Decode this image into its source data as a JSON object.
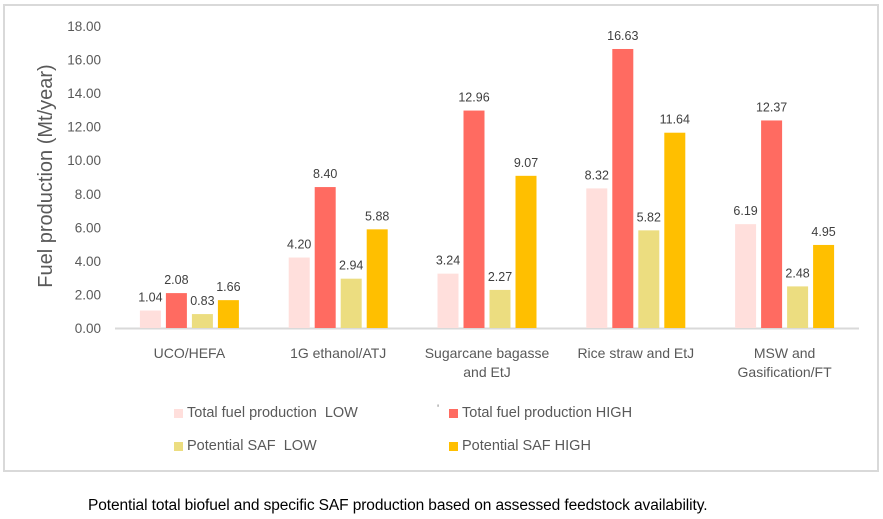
{
  "chart_data": {
    "type": "bar",
    "title": "",
    "xlabel": "",
    "ylabel": "Fuel production (Mt/year)",
    "ylim": [
      0,
      18
    ],
    "yticks": [
      "0.00",
      "2.00",
      "4.00",
      "6.00",
      "8.00",
      "10.00",
      "12.00",
      "14.00",
      "16.00",
      "18.00"
    ],
    "ytick_values": [
      0,
      2,
      4,
      6,
      8,
      10,
      12,
      14,
      16,
      18
    ],
    "grid": false,
    "legend_position": "bottom",
    "categories": [
      [
        "UCO/HEFA"
      ],
      [
        "1G ethanol/ATJ"
      ],
      [
        "Sugarcane bagasse",
        "and EtJ"
      ],
      [
        "Rice straw and EtJ"
      ],
      [
        "MSW and",
        "Gasification/FT"
      ]
    ],
    "series": [
      {
        "name": "Total fuel production  LOW",
        "color": "#ffdfdc",
        "values": [
          1.04,
          4.2,
          3.24,
          8.32,
          6.19
        ],
        "labels": [
          "1.04",
          "4.20",
          "3.24",
          "8.32",
          "6.19"
        ]
      },
      {
        "name": "Total fuel production HIGH",
        "color": "#ff6b61",
        "values": [
          2.08,
          8.4,
          12.96,
          16.63,
          12.37
        ],
        "labels": [
          "2.08",
          "8.40",
          "12.96",
          "16.63",
          "12.37"
        ]
      },
      {
        "name": "Potential SAF  LOW",
        "color": "#ecdd80",
        "values": [
          0.83,
          2.94,
          2.27,
          5.82,
          2.48
        ],
        "labels": [
          "0.83",
          "2.94",
          "2.27",
          "5.82",
          "2.48"
        ]
      },
      {
        "name": "Potential SAF HIGH",
        "color": "#ffbf00",
        "values": [
          1.66,
          5.88,
          9.07,
          11.64,
          4.95
        ],
        "labels": [
          "1.66",
          "5.88",
          "9.07",
          "11.64",
          "4.95"
        ]
      }
    ]
  },
  "legend_stray_mark": "'",
  "caption": "Potential total biofuel and specific SAF production based on assessed feedstock availability."
}
